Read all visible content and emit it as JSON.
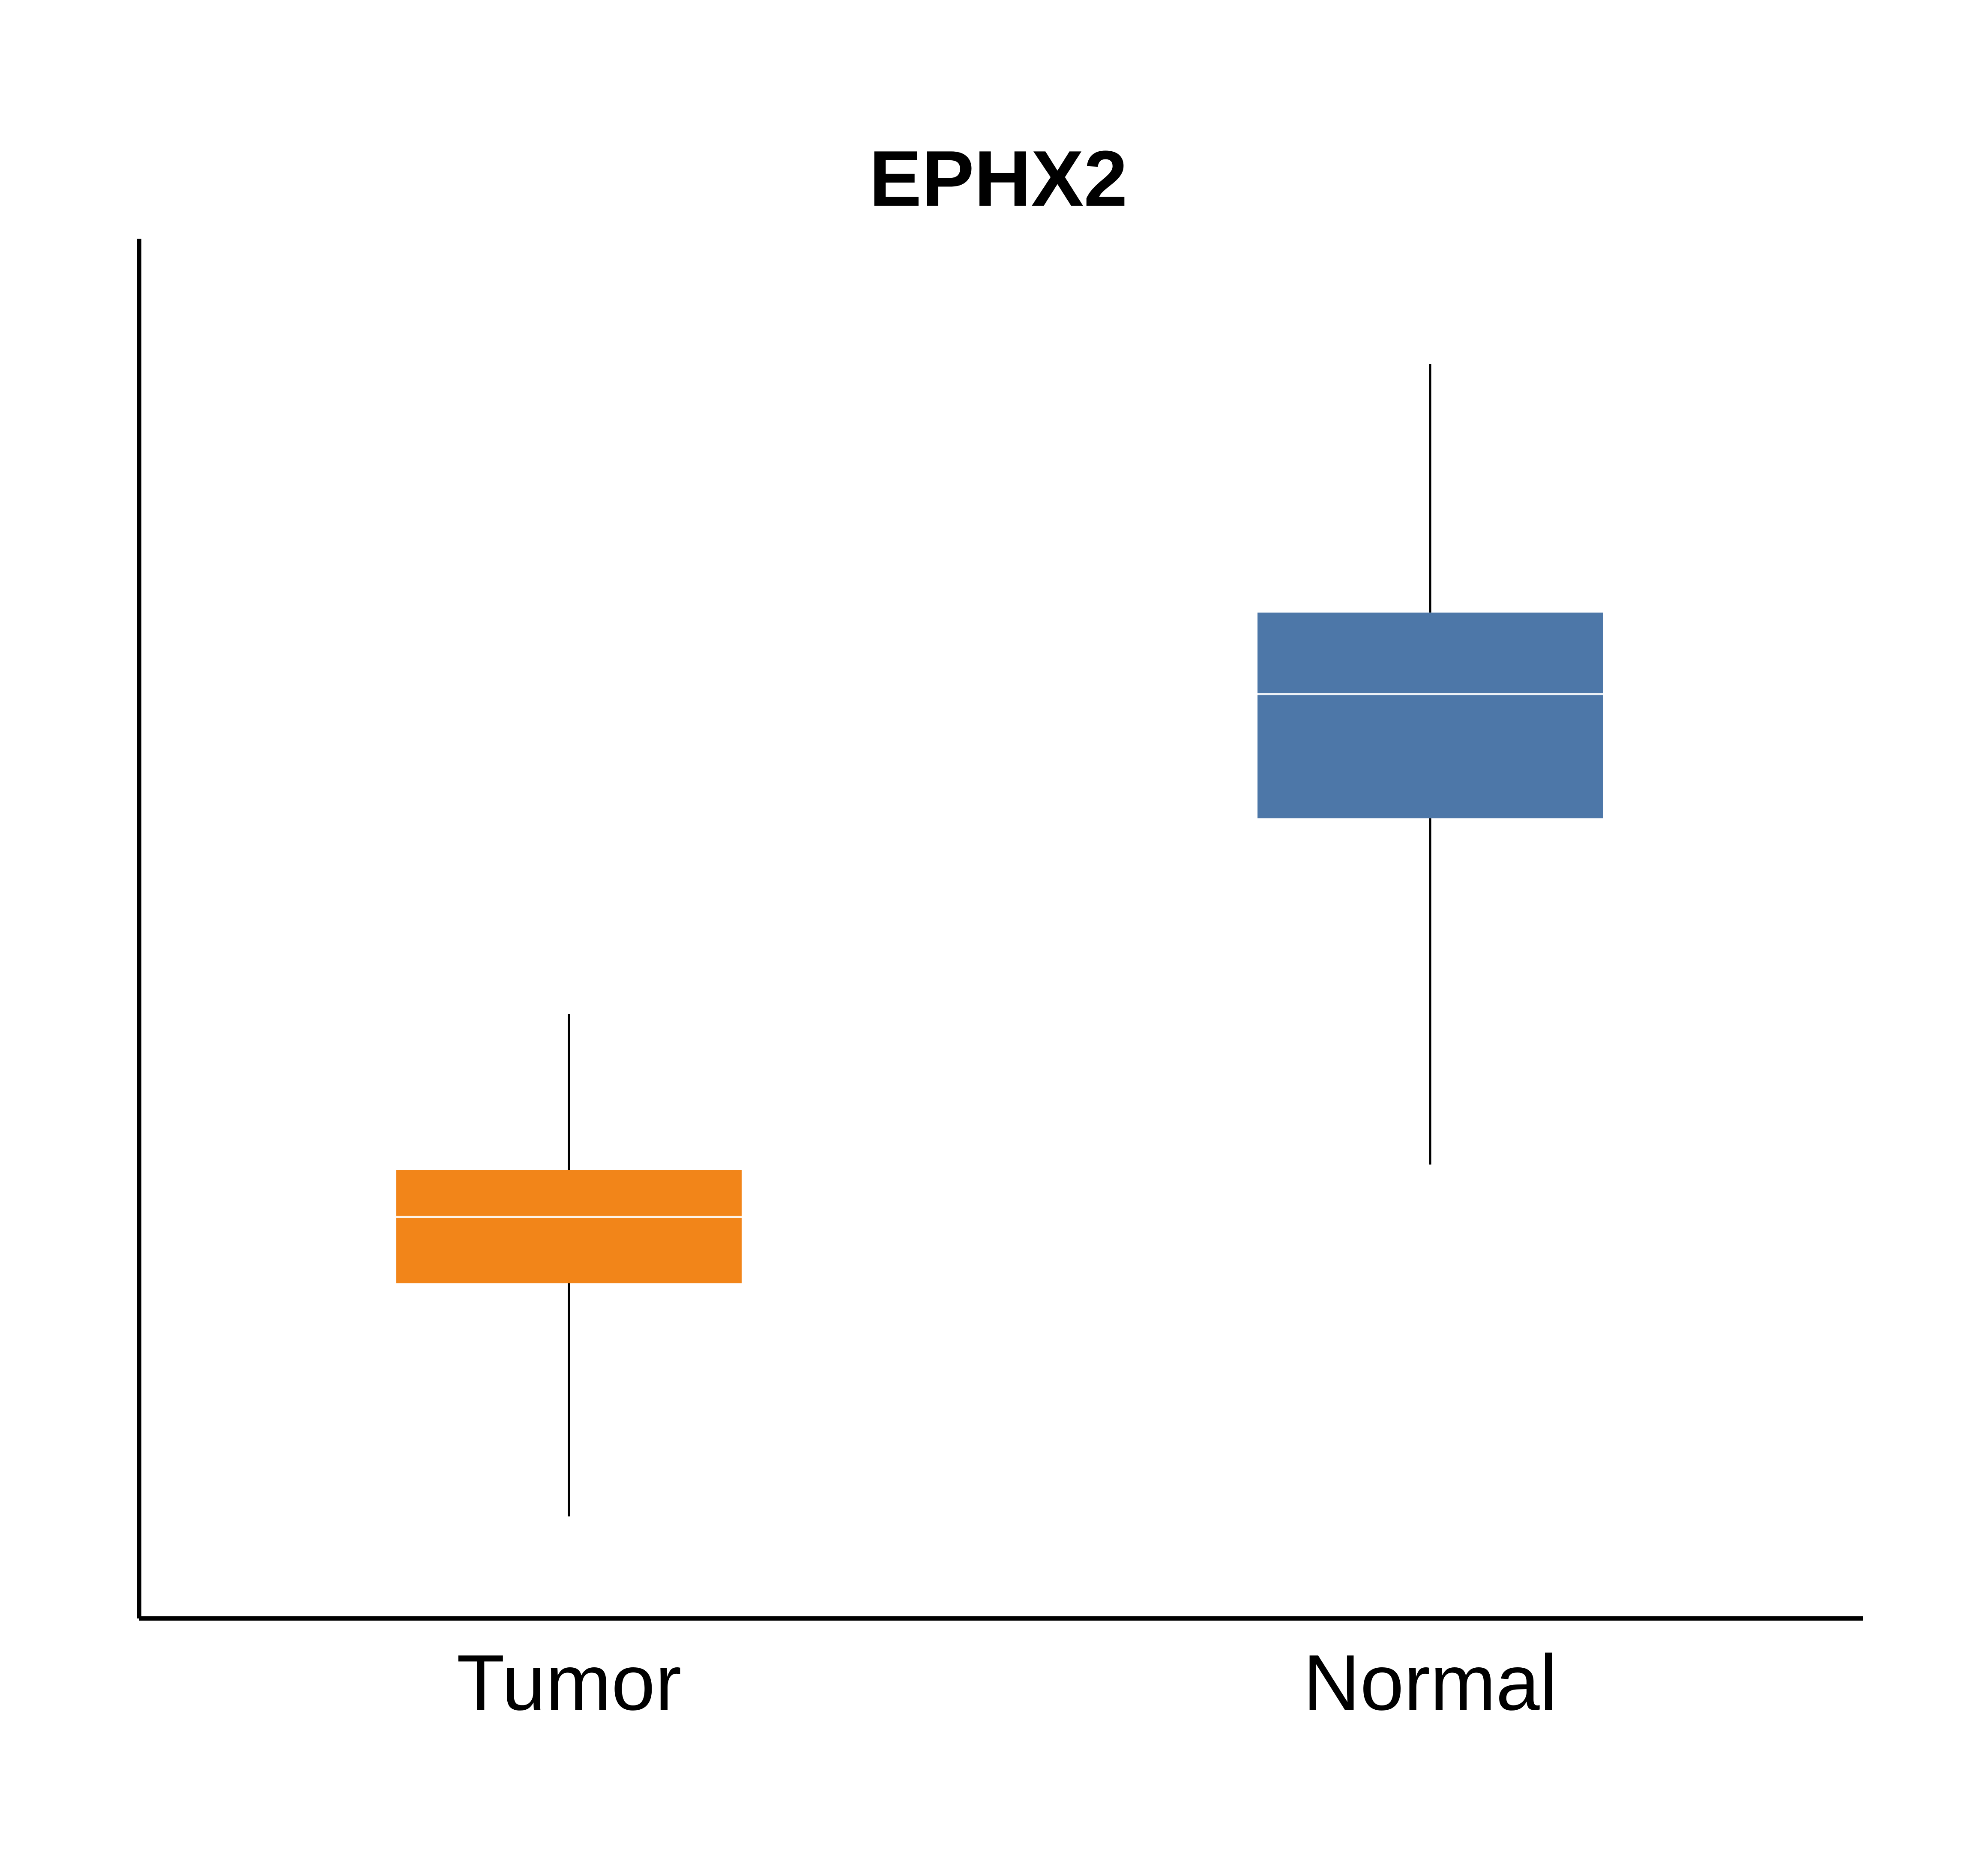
{
  "chart_data": {
    "type": "box",
    "title": "EPHX2",
    "xlabel": "",
    "ylabel": "",
    "categories": [
      "Tumor",
      "Normal"
    ],
    "ylim": [
      0,
      100
    ],
    "grid": false,
    "series": [
      {
        "category": "Tumor",
        "color": "#f28519",
        "whisker_low": 7.4,
        "q1": 24.3,
        "median": 29.1,
        "q3": 32.5,
        "whisker_high": 43.8
      },
      {
        "category": "Normal",
        "color": "#4d77a8",
        "whisker_low": 32.9,
        "q1": 58.0,
        "median": 67.0,
        "q3": 72.9,
        "whisker_high": 90.9
      }
    ]
  }
}
